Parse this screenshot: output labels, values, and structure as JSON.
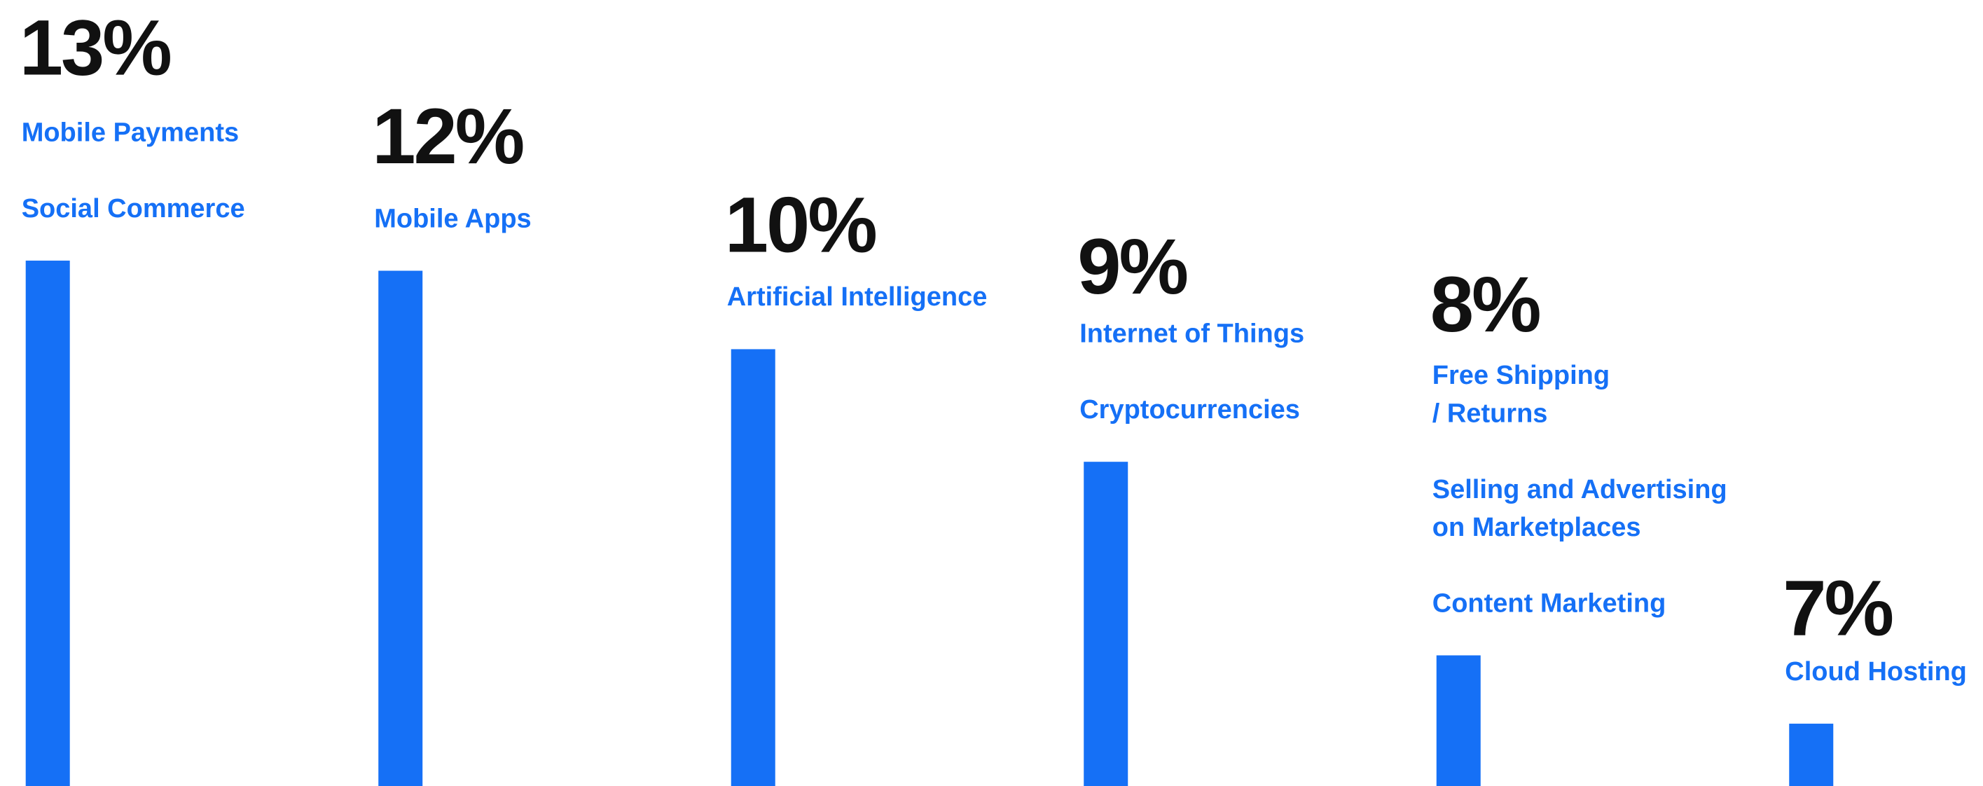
{
  "chart_data": {
    "type": "bar",
    "color": "#1570f6",
    "values": [
      13,
      12,
      10,
      9,
      8,
      7
    ],
    "value_labels": [
      "13%",
      "12%",
      "10%",
      "9%",
      "8%",
      "7%"
    ],
    "labels": [
      [
        [
          "Mobile Payments"
        ],
        [
          "Social Commerce"
        ]
      ],
      [
        [
          "Mobile Apps"
        ]
      ],
      [
        [
          "Artificial Intelligence"
        ]
      ],
      [
        [
          "Internet of Things"
        ],
        [
          "Cryptocurrencies"
        ]
      ],
      [
        [
          "Free Shipping",
          "/ Returns"
        ],
        [
          "Selling and Advertising",
          "on Marketplaces"
        ],
        [
          "Content Marketing"
        ]
      ],
      [
        [
          "Cloud Hosting"
        ]
      ]
    ]
  }
}
